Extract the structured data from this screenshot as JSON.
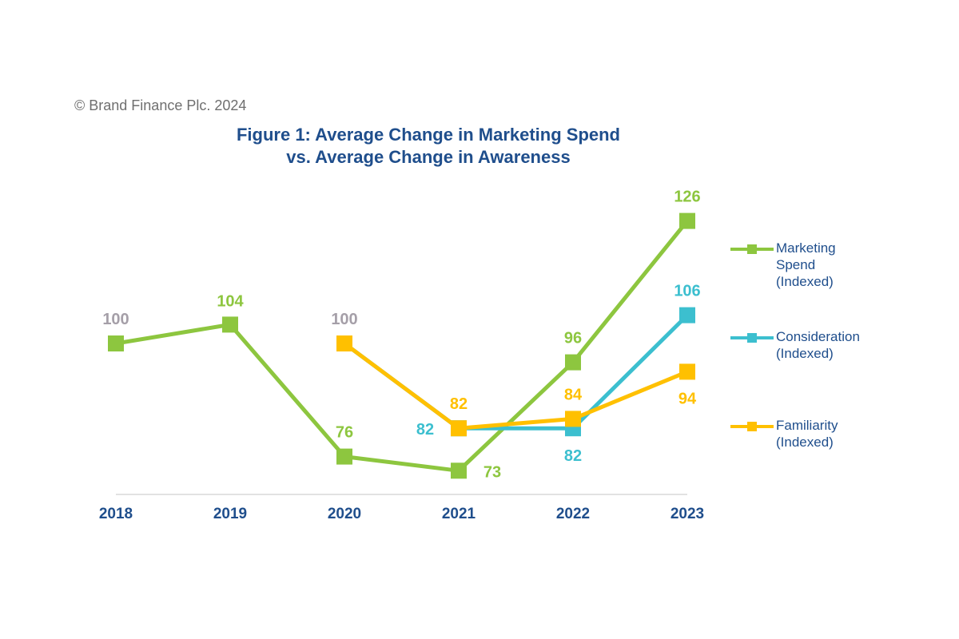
{
  "copyright": "© Brand Finance Plc. 2024",
  "title_line1": "Figure 1: Average Change in Marketing Spend",
  "title_line2": "vs. Average Change in Awareness",
  "colors": {
    "marketing": "#8dc63f",
    "consideration": "#3cbfcf",
    "familiarity": "#ffc000",
    "base": "#a59fa8",
    "axis_text": "#1f4e8c"
  },
  "legend": [
    {
      "label": "Marketing\nSpend\n(Indexed)",
      "color": "#8dc63f"
    },
    {
      "label": "Consideration\n(Indexed)",
      "color": "#3cbfcf"
    },
    {
      "label": "Familiarity\n(Indexed)",
      "color": "#ffc000"
    }
  ],
  "chart_data": {
    "type": "line",
    "categories": [
      "2018",
      "2019",
      "2020",
      "2021",
      "2022",
      "2023"
    ],
    "series": [
      {
        "name": "Marketing Spend (Indexed)",
        "color": "#8dc63f",
        "values": [
          100,
          104,
          76,
          73,
          96,
          126
        ],
        "labels": [
          "100",
          "104",
          "76",
          "73",
          "96",
          "126"
        ]
      },
      {
        "name": "Consideration (Indexed)",
        "color": "#3cbfcf",
        "values": [
          null,
          null,
          100,
          82,
          82,
          106
        ],
        "labels": [
          null,
          null,
          "",
          "82",
          "82",
          "106"
        ]
      },
      {
        "name": "Familiarity (Indexed)",
        "color": "#ffc000",
        "values": [
          null,
          null,
          100,
          82,
          84,
          94
        ],
        "labels": [
          null,
          null,
          "100",
          "82",
          "84",
          "94"
        ]
      }
    ],
    "ylim": [
      68,
      130
    ],
    "grid": false,
    "legend_position": "right"
  }
}
